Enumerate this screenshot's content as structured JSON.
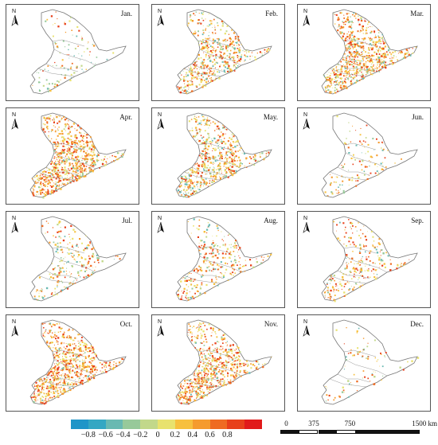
{
  "panels": [
    {
      "month": "Jan.",
      "intensity": 0.08,
      "cool_share": 0.6
    },
    {
      "month": "Feb.",
      "intensity": 0.55,
      "cool_share": 0.25
    },
    {
      "month": "Mar.",
      "intensity": 0.8,
      "cool_share": 0.15
    },
    {
      "month": "Apr.",
      "intensity": 0.85,
      "cool_share": 0.1
    },
    {
      "month": "May.",
      "intensity": 0.65,
      "cool_share": 0.3
    },
    {
      "month": "Jun.",
      "intensity": 0.1,
      "cool_share": 0.2
    },
    {
      "month": "Jul.",
      "intensity": 0.22,
      "cool_share": 0.35
    },
    {
      "month": "Aug.",
      "intensity": 0.28,
      "cool_share": 0.2
    },
    {
      "month": "Sep.",
      "intensity": 0.25,
      "cool_share": 0.2
    },
    {
      "month": "Oct.",
      "intensity": 0.8,
      "cool_share": 0.05
    },
    {
      "month": "Nov.",
      "intensity": 0.7,
      "cool_share": 0.1
    },
    {
      "month": "Dec.",
      "intensity": 0.05,
      "cool_share": 0.3
    }
  ],
  "north_label": "N",
  "legend": {
    "colors": [
      "#1f95c8",
      "#34a7c3",
      "#69b9b2",
      "#97c99a",
      "#c2d88a",
      "#e8e26e",
      "#f7c03e",
      "#f59b2e",
      "#ef6b22",
      "#e8401a",
      "#e11a1a"
    ],
    "labels": [
      "−0.8",
      "−0.6",
      "−0.4",
      "−0.2",
      "0",
      "0.2",
      "0.4",
      "0.6",
      "0.8"
    ]
  },
  "scale": {
    "labels": [
      "0",
      "375",
      "750",
      "1500 km"
    ]
  }
}
